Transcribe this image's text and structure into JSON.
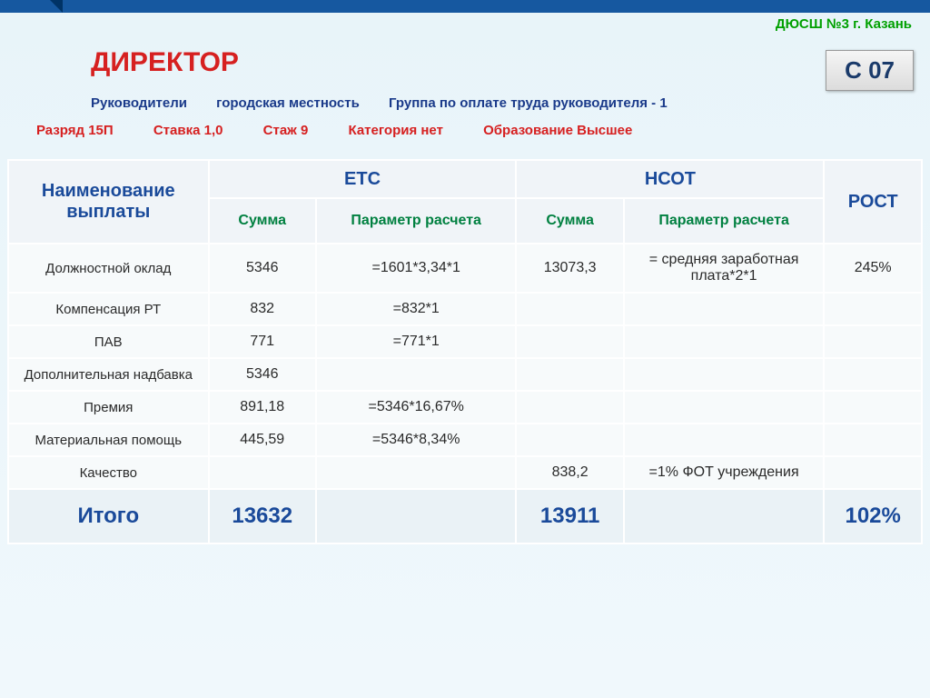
{
  "org": "ДЮСШ №3 г. Казань",
  "title": "ДИРЕКТОР",
  "code": "С 07",
  "meta1": {
    "a": "Руководители",
    "b": "городская местность",
    "c": "Группа по оплате труда руководителя - 1"
  },
  "meta2": {
    "a": "Разряд 15П",
    "b": "Ставка 1,0",
    "c": "Стаж 9",
    "d": "Категория нет",
    "e": "Образование Высшее"
  },
  "headers": {
    "name": "Наименование выплаты",
    "etc": "ЕТС",
    "nsot": "НСОТ",
    "rost": "РОСТ",
    "sum": "Сумма",
    "param": "Параметр расчета"
  },
  "rows": [
    {
      "name": "Должностной оклад",
      "etc_sum": "5346",
      "etc_param": "=1601*3,34*1",
      "nsot_sum": "13073,3",
      "nsot_param": "= средняя заработная плата*2*1",
      "rost": "245%"
    },
    {
      "name": "Компенсация РТ",
      "etc_sum": "832",
      "etc_param": "=832*1",
      "nsot_sum": "",
      "nsot_param": "",
      "rost": ""
    },
    {
      "name": "ПАВ",
      "etc_sum": "771",
      "etc_param": "=771*1",
      "nsot_sum": "",
      "nsot_param": "",
      "rost": ""
    },
    {
      "name": "Дополнительная надбавка",
      "etc_sum": "5346",
      "etc_param": "",
      "nsot_sum": "",
      "nsot_param": "",
      "rost": ""
    },
    {
      "name": "Премия",
      "etc_sum": "891,18",
      "etc_param": "=5346*16,67%",
      "nsot_sum": "",
      "nsot_param": "",
      "rost": ""
    },
    {
      "name": "Материальная помощь",
      "etc_sum": "445,59",
      "etc_param": "=5346*8,34%",
      "nsot_sum": "",
      "nsot_param": "",
      "rost": ""
    },
    {
      "name": "Качество",
      "etc_sum": "",
      "etc_param": "",
      "nsot_sum": "838,2",
      "nsot_param": "=1% ФОТ учреждения",
      "rost": ""
    }
  ],
  "total": {
    "label": "Итого",
    "etc_sum": "13632",
    "nsot_sum": "13911",
    "rost": "102%"
  },
  "colors": {
    "bg_top": "#e8f4f9",
    "accent_blue": "#1a4a9a",
    "accent_red": "#d62020",
    "accent_green": "#008040",
    "header_bg": "#f0f4f8",
    "cell_bg": "#f7fafb",
    "total_bg": "#eaf2f6"
  }
}
